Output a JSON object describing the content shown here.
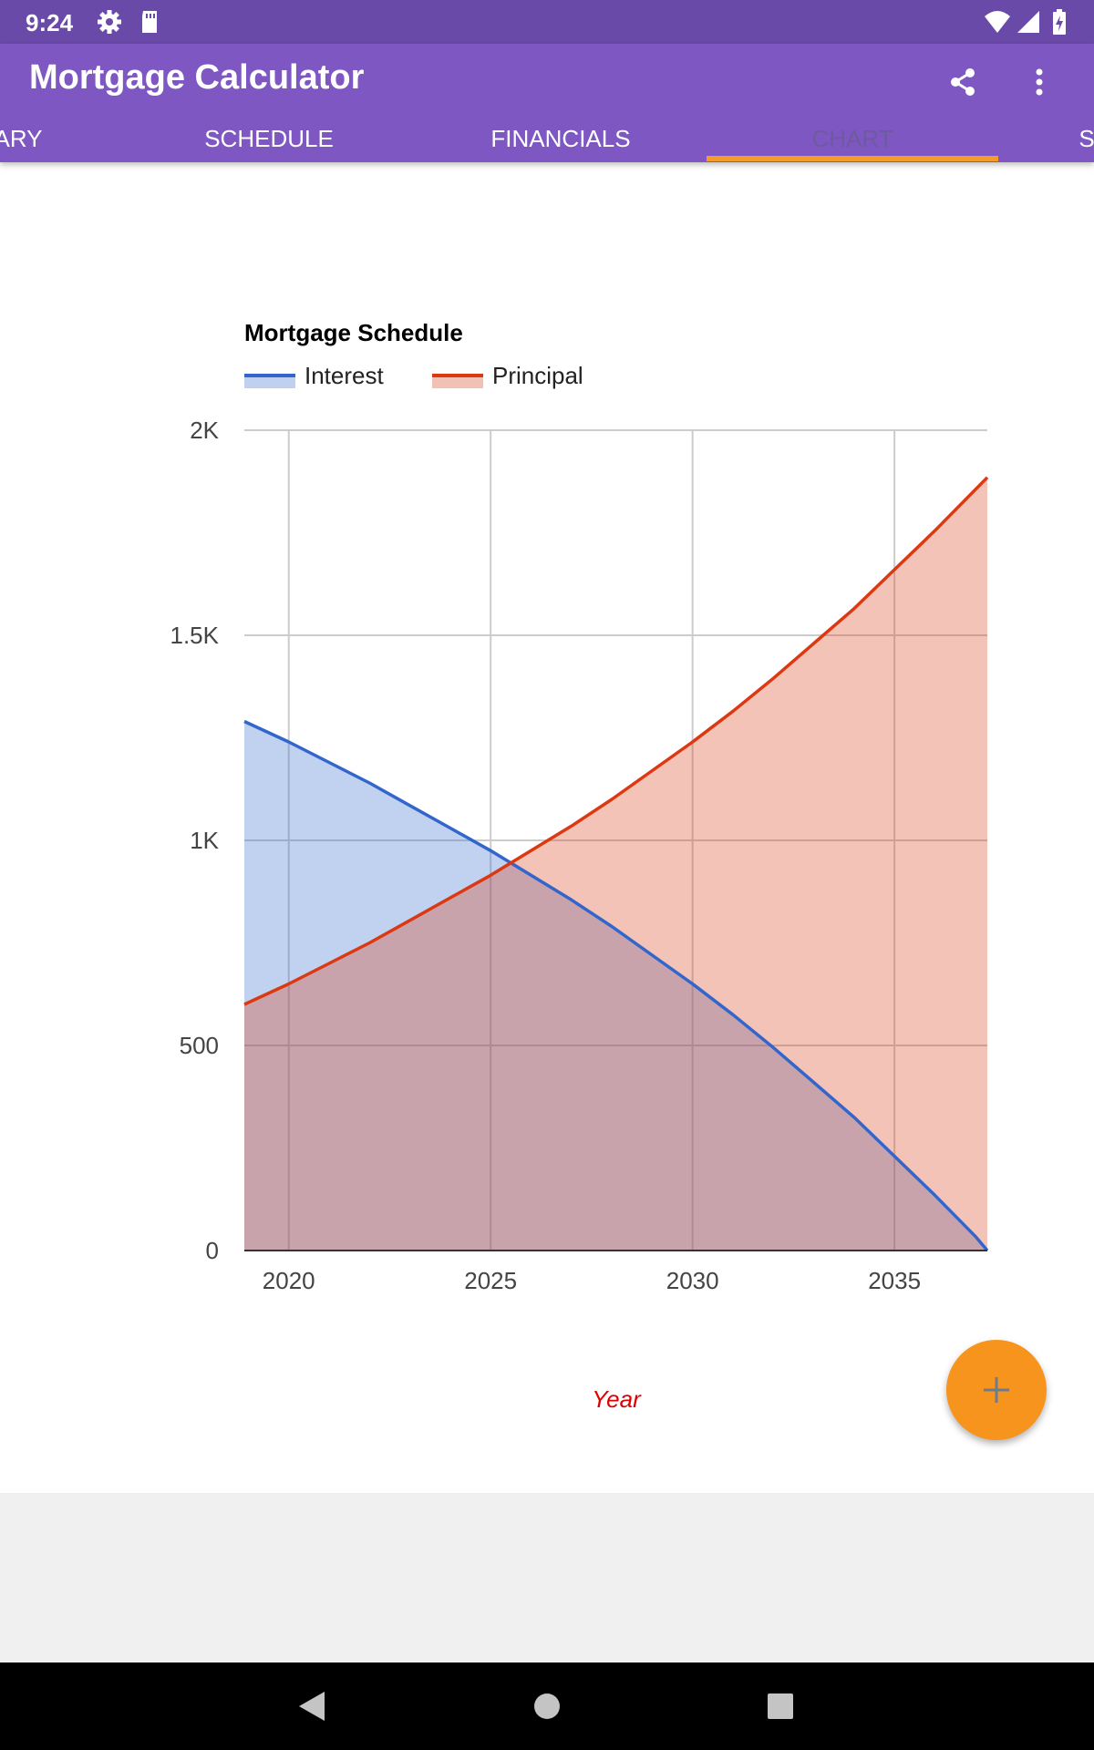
{
  "status_bar": {
    "time": "9:24",
    "icons": [
      "gear-icon",
      "sd-card-icon",
      "wifi-icon",
      "signal-icon",
      "battery-charging-icon"
    ]
  },
  "app_bar": {
    "title": "Mortgage Calculator",
    "actions": [
      "share-icon",
      "more-vert-icon"
    ]
  },
  "tabs": [
    {
      "label": "ARY"
    },
    {
      "label": "SCHEDULE"
    },
    {
      "label": "FINANCIALS"
    },
    {
      "label": "CHART",
      "active": true
    },
    {
      "label": "S"
    }
  ],
  "colors": {
    "status_bar": "#6a4aa8",
    "app_bar": "#7e57c2",
    "tab_indicator": "#f39c29",
    "interest": "#3366cc",
    "principal": "#dc3912",
    "fab": "#f7941d",
    "xlabel": "#e00000"
  },
  "chart_data": {
    "type": "area",
    "title": "Mortgage Schedule",
    "xlabel": "Year",
    "ylabel": "",
    "xlim": [
      2018.9,
      2037.3
    ],
    "ylim": [
      0,
      2000
    ],
    "x_ticks": [
      {
        "value": 2020,
        "label": "2020"
      },
      {
        "value": 2025,
        "label": "2025"
      },
      {
        "value": 2030,
        "label": "2030"
      },
      {
        "value": 2035,
        "label": "2035"
      }
    ],
    "y_ticks": [
      {
        "value": 0,
        "label": "0"
      },
      {
        "value": 500,
        "label": "500"
      },
      {
        "value": 1000,
        "label": "1K"
      },
      {
        "value": 1500,
        "label": "1.5K"
      },
      {
        "value": 2000,
        "label": "2K"
      }
    ],
    "grid": true,
    "legend_position": "top",
    "x": [
      2018.9,
      2020,
      2021,
      2022,
      2023,
      2024,
      2025,
      2026,
      2027,
      2028,
      2029,
      2030,
      2031,
      2032,
      2033,
      2034,
      2035,
      2036,
      2037,
      2037.3
    ],
    "series": [
      {
        "name": "Interest",
        "color": "#3366cc",
        "values": [
          1290,
          1240,
          1190,
          1140,
          1085,
          1030,
          975,
          915,
          855,
          790,
          720,
          650,
          575,
          495,
          410,
          325,
          230,
          135,
          35,
          0
        ]
      },
      {
        "name": "Principal",
        "color": "#dc3912",
        "values": [
          600,
          650,
          700,
          750,
          805,
          860,
          915,
          975,
          1035,
          1100,
          1170,
          1240,
          1315,
          1395,
          1480,
          1565,
          1660,
          1755,
          1855,
          1885
        ]
      }
    ]
  },
  "fab": {
    "icon": "plus-icon"
  },
  "nav_bar": {
    "buttons": [
      "back-icon",
      "home-icon",
      "recents-icon"
    ]
  }
}
